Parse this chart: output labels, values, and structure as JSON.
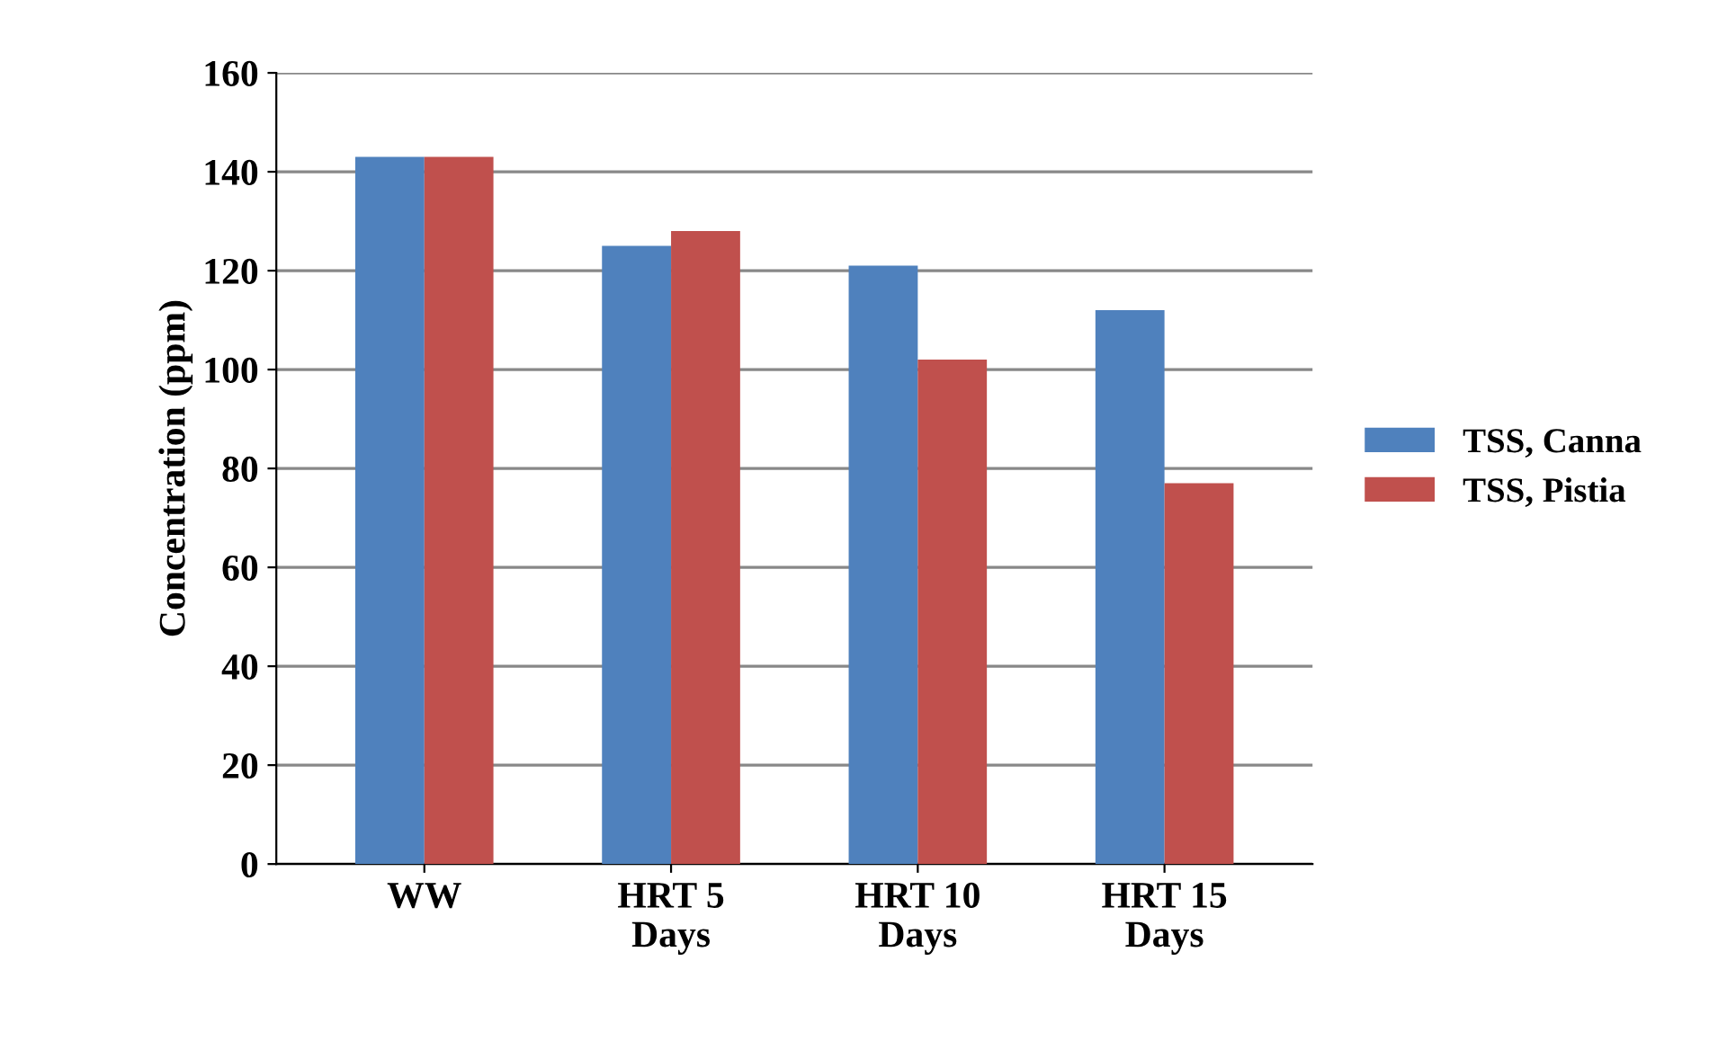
{
  "chart_data": {
    "type": "bar",
    "ylabel": "Concentration (ppm)",
    "categories": [
      "WW",
      "HRT 5\nDays",
      "HRT 10\nDays",
      "HRT 15\nDays"
    ],
    "series": [
      {
        "name": "TSS, Canna",
        "color": "#4f81bd",
        "values": [
          143,
          125,
          121,
          112
        ]
      },
      {
        "name": "TSS, Pistia",
        "color": "#c0504d",
        "values": [
          143,
          128,
          102,
          77
        ]
      }
    ],
    "ylim": [
      0,
      160
    ],
    "yticks": [
      0,
      20,
      40,
      60,
      80,
      100,
      120,
      140,
      160
    ],
    "grid": "y",
    "legend": "right"
  }
}
